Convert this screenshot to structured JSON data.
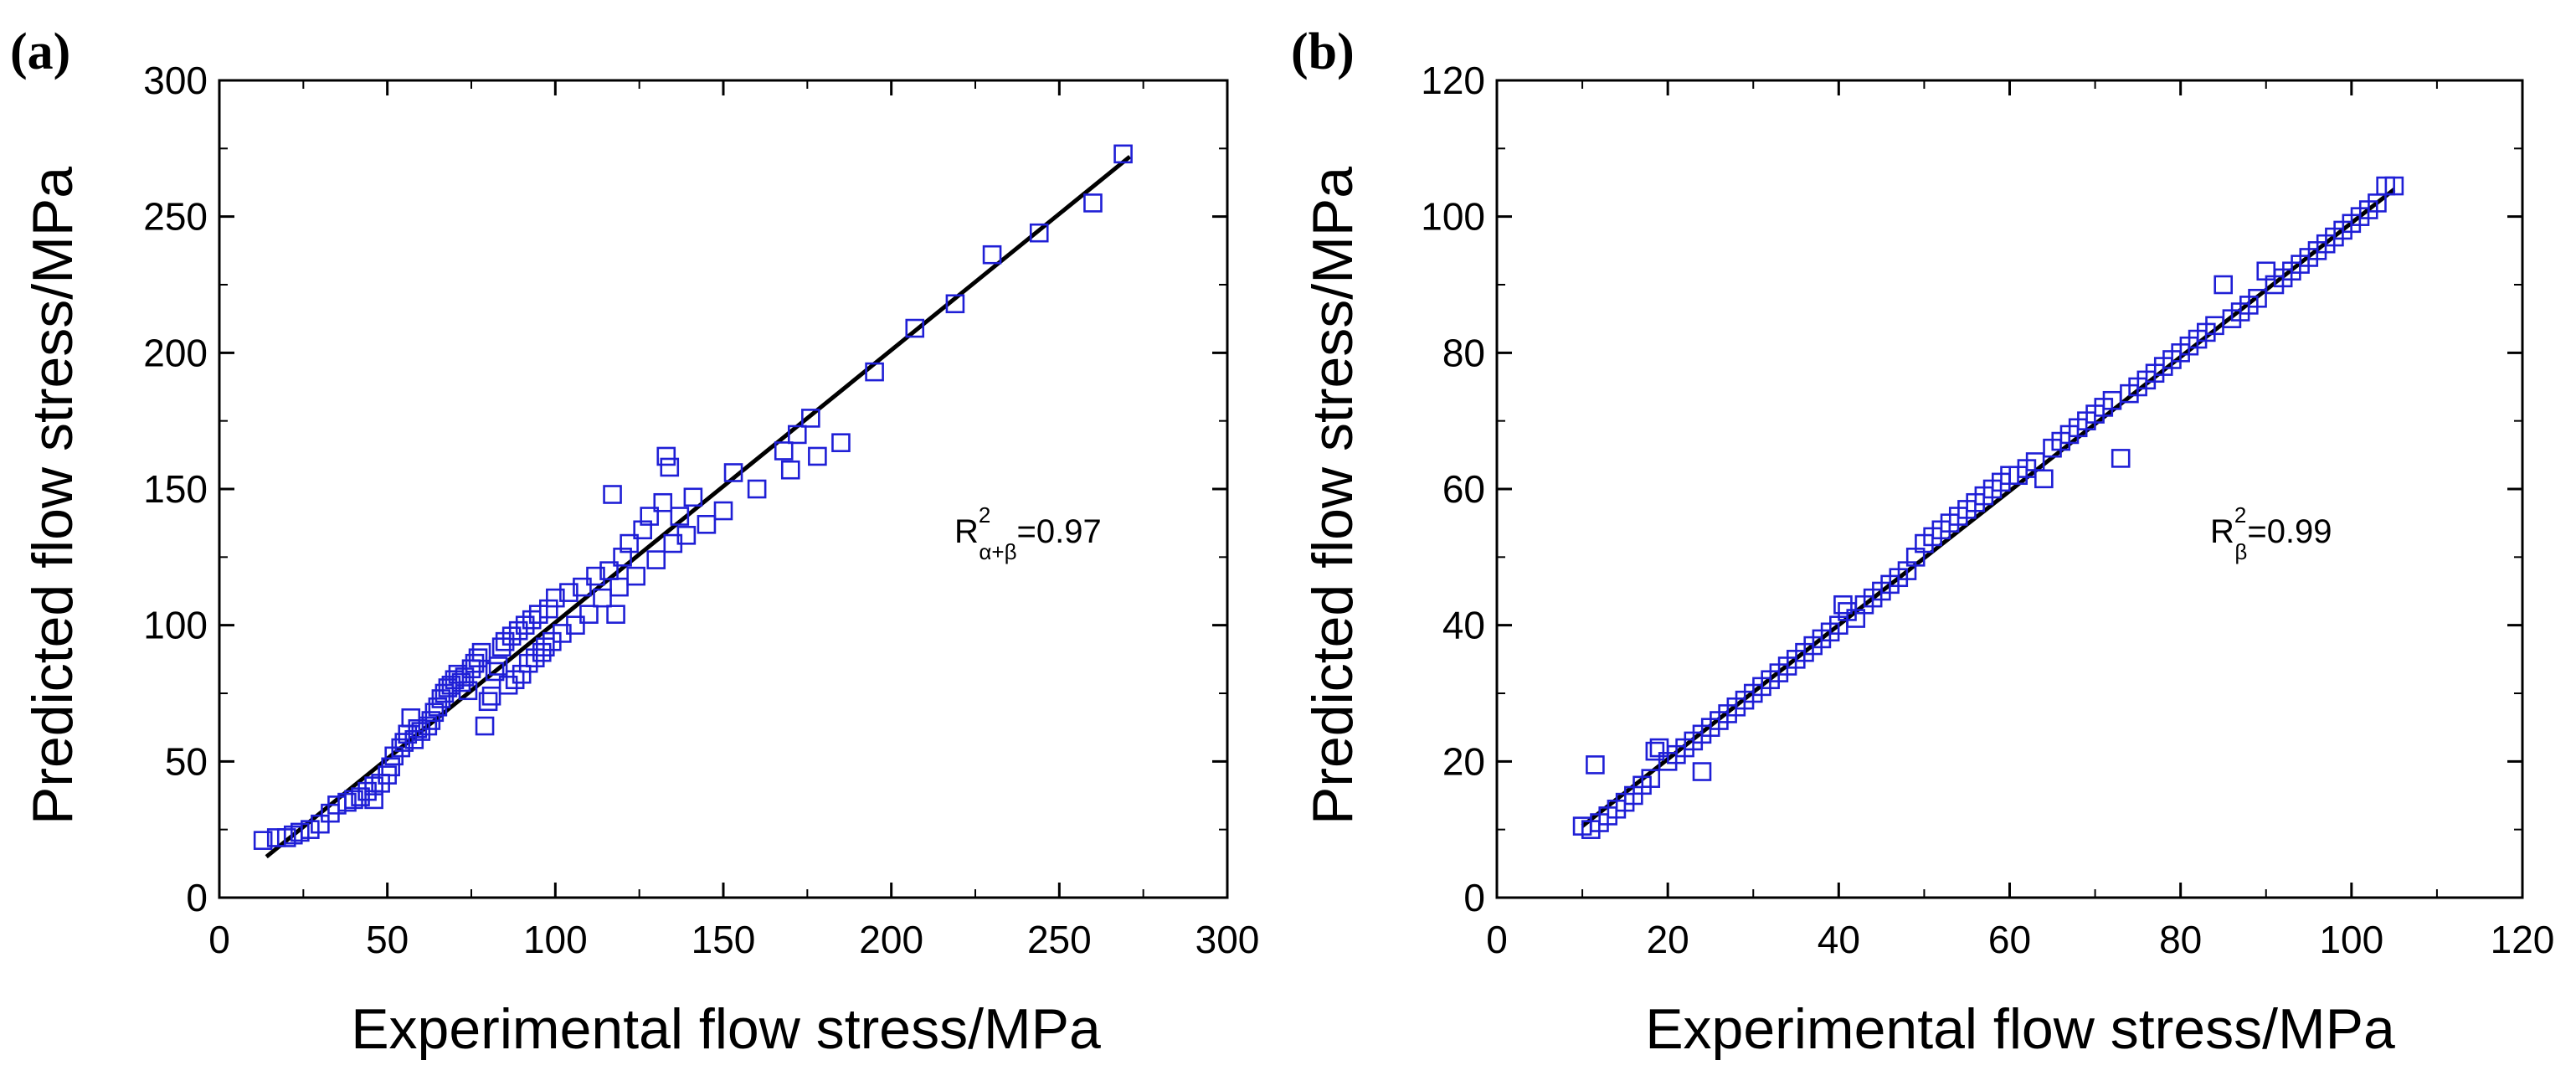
{
  "chart_data": [
    {
      "panel_label": "(a)",
      "type": "scatter",
      "xlabel": "Experimental flow stress/MPa",
      "ylabel": "Predicted flow stress/MPa",
      "xlim": [
        0,
        300
      ],
      "ylim": [
        0,
        300
      ],
      "xticks": [
        0,
        50,
        100,
        150,
        200,
        250,
        300
      ],
      "yticks": [
        0,
        50,
        100,
        150,
        200,
        250,
        300
      ],
      "annotation": {
        "base": "R",
        "sup": "2",
        "sub": "α+β",
        "value": "=0.97"
      },
      "marker": "open-square",
      "marker_color": "#1f1fd6",
      "fit_line": {
        "from": [
          14,
          15
        ],
        "to": [
          271,
          272
        ],
        "color": "#000000"
      },
      "points": [
        [
          13,
          21
        ],
        [
          17,
          22
        ],
        [
          20,
          22
        ],
        [
          22,
          23
        ],
        [
          24,
          24
        ],
        [
          27,
          25
        ],
        [
          30,
          27
        ],
        [
          33,
          31
        ],
        [
          35,
          34
        ],
        [
          38,
          35
        ],
        [
          40,
          36
        ],
        [
          42,
          37
        ],
        [
          44,
          39
        ],
        [
          46,
          36
        ],
        [
          46,
          41
        ],
        [
          48,
          42
        ],
        [
          50,
          45
        ],
        [
          51,
          48
        ],
        [
          52,
          52
        ],
        [
          54,
          55
        ],
        [
          55,
          57
        ],
        [
          56,
          60
        ],
        [
          57,
          66
        ],
        [
          58,
          58
        ],
        [
          59,
          62
        ],
        [
          60,
          61
        ],
        [
          62,
          63
        ],
        [
          63,
          65
        ],
        [
          64,
          68
        ],
        [
          65,
          70
        ],
        [
          66,
          73
        ],
        [
          67,
          75
        ],
        [
          68,
          77
        ],
        [
          69,
          78
        ],
        [
          70,
          80
        ],
        [
          71,
          82
        ],
        [
          72,
          79
        ],
        [
          73,
          81
        ],
        [
          74,
          76
        ],
        [
          75,
          84
        ],
        [
          76,
          86
        ],
        [
          77,
          88
        ],
        [
          78,
          90
        ],
        [
          79,
          63
        ],
        [
          80,
          72
        ],
        [
          81,
          74
        ],
        [
          82,
          83
        ],
        [
          83,
          85
        ],
        [
          84,
          92
        ],
        [
          85,
          94
        ],
        [
          86,
          78
        ],
        [
          87,
          96
        ],
        [
          88,
          80
        ],
        [
          89,
          98
        ],
        [
          90,
          82
        ],
        [
          91,
          100
        ],
        [
          92,
          86
        ],
        [
          93,
          102
        ],
        [
          94,
          88
        ],
        [
          95,
          104
        ],
        [
          96,
          90
        ],
        [
          97,
          92
        ],
        [
          98,
          106
        ],
        [
          99,
          94
        ],
        [
          100,
          110
        ],
        [
          102,
          97
        ],
        [
          104,
          112
        ],
        [
          106,
          100
        ],
        [
          108,
          114
        ],
        [
          110,
          104
        ],
        [
          112,
          118
        ],
        [
          114,
          110
        ],
        [
          116,
          120
        ],
        [
          117,
          148
        ],
        [
          118,
          104
        ],
        [
          119,
          114
        ],
        [
          120,
          125
        ],
        [
          122,
          130
        ],
        [
          124,
          118
        ],
        [
          126,
          135
        ],
        [
          128,
          140
        ],
        [
          130,
          124
        ],
        [
          132,
          145
        ],
        [
          133,
          162
        ],
        [
          134,
          158
        ],
        [
          135,
          130
        ],
        [
          137,
          140
        ],
        [
          139,
          133
        ],
        [
          141,
          147
        ],
        [
          145,
          137
        ],
        [
          150,
          142
        ],
        [
          153,
          156
        ],
        [
          160,
          150
        ],
        [
          168,
          164
        ],
        [
          170,
          157
        ],
        [
          172,
          170
        ],
        [
          176,
          176
        ],
        [
          178,
          162
        ],
        [
          185,
          167
        ],
        [
          195,
          193
        ],
        [
          207,
          209
        ],
        [
          219,
          218
        ],
        [
          230,
          236
        ],
        [
          244,
          244
        ],
        [
          260,
          255
        ],
        [
          269,
          273
        ]
      ]
    },
    {
      "panel_label": "(b)",
      "type": "scatter",
      "xlabel": "Experimental flow stress/MPa",
      "ylabel": "Predicted flow stress/MPa",
      "xlim": [
        0,
        120
      ],
      "ylim": [
        0,
        120
      ],
      "xticks": [
        0,
        20,
        40,
        60,
        80,
        100,
        120
      ],
      "yticks": [
        0,
        20,
        40,
        60,
        80,
        100,
        120
      ],
      "annotation": {
        "base": "R",
        "sup": "2",
        "sub": "β",
        "value": "=0.99"
      },
      "marker": "open-square",
      "marker_color": "#1f1fd6",
      "fit_line": {
        "from": [
          10,
          10.5
        ],
        "to": [
          105,
          104
        ],
        "color": "#000000"
      },
      "points": [
        [
          10,
          10.5
        ],
        [
          11,
          10
        ],
        [
          11.5,
          19.5
        ],
        [
          12,
          11
        ],
        [
          13,
          12
        ],
        [
          14,
          13
        ],
        [
          15,
          14
        ],
        [
          16,
          15
        ],
        [
          17,
          16.5
        ],
        [
          18,
          17.5
        ],
        [
          18.5,
          21.5
        ],
        [
          19,
          22
        ],
        [
          20,
          20
        ],
        [
          21,
          21
        ],
        [
          22,
          22
        ],
        [
          23,
          23
        ],
        [
          24,
          18.5
        ],
        [
          24,
          24
        ],
        [
          25,
          25
        ],
        [
          26,
          26
        ],
        [
          27,
          27
        ],
        [
          28,
          28
        ],
        [
          29,
          29
        ],
        [
          30,
          30
        ],
        [
          31,
          31
        ],
        [
          32,
          32
        ],
        [
          33,
          33
        ],
        [
          34,
          34
        ],
        [
          35,
          35
        ],
        [
          36,
          36
        ],
        [
          37,
          37
        ],
        [
          38,
          38
        ],
        [
          39,
          39
        ],
        [
          40,
          40
        ],
        [
          40.5,
          43
        ],
        [
          41,
          42
        ],
        [
          42,
          41
        ],
        [
          43,
          43
        ],
        [
          44,
          44
        ],
        [
          45,
          45
        ],
        [
          46,
          46
        ],
        [
          47,
          47
        ],
        [
          48,
          48
        ],
        [
          49,
          50
        ],
        [
          50,
          52
        ],
        [
          51,
          53
        ],
        [
          52,
          54
        ],
        [
          53,
          55
        ],
        [
          54,
          56
        ],
        [
          55,
          57
        ],
        [
          56,
          58
        ],
        [
          57,
          59
        ],
        [
          58,
          60
        ],
        [
          59,
          61
        ],
        [
          60,
          62
        ],
        [
          61,
          62
        ],
        [
          62,
          63
        ],
        [
          63,
          64
        ],
        [
          64,
          61.5
        ],
        [
          65,
          66
        ],
        [
          66,
          67
        ],
        [
          67,
          68
        ],
        [
          68,
          69
        ],
        [
          69,
          70
        ],
        [
          70,
          71
        ],
        [
          71,
          72
        ],
        [
          72,
          73
        ],
        [
          73,
          64.5
        ],
        [
          74,
          74
        ],
        [
          75,
          75
        ],
        [
          76,
          76
        ],
        [
          77,
          77
        ],
        [
          78,
          78
        ],
        [
          79,
          79
        ],
        [
          80,
          80
        ],
        [
          81,
          81
        ],
        [
          82,
          82
        ],
        [
          83,
          83
        ],
        [
          84,
          84
        ],
        [
          85,
          90
        ],
        [
          86,
          85
        ],
        [
          87,
          86
        ],
        [
          88,
          87
        ],
        [
          89,
          88
        ],
        [
          90,
          92
        ],
        [
          91,
          90
        ],
        [
          92,
          91
        ],
        [
          93,
          92
        ],
        [
          94,
          93
        ],
        [
          95,
          94
        ],
        [
          96,
          95
        ],
        [
          97,
          96
        ],
        [
          98,
          97
        ],
        [
          99,
          98
        ],
        [
          100,
          99
        ],
        [
          101,
          100
        ],
        [
          102,
          101
        ],
        [
          103,
          102
        ],
        [
          104,
          104.5
        ],
        [
          105,
          104.5
        ]
      ]
    }
  ]
}
